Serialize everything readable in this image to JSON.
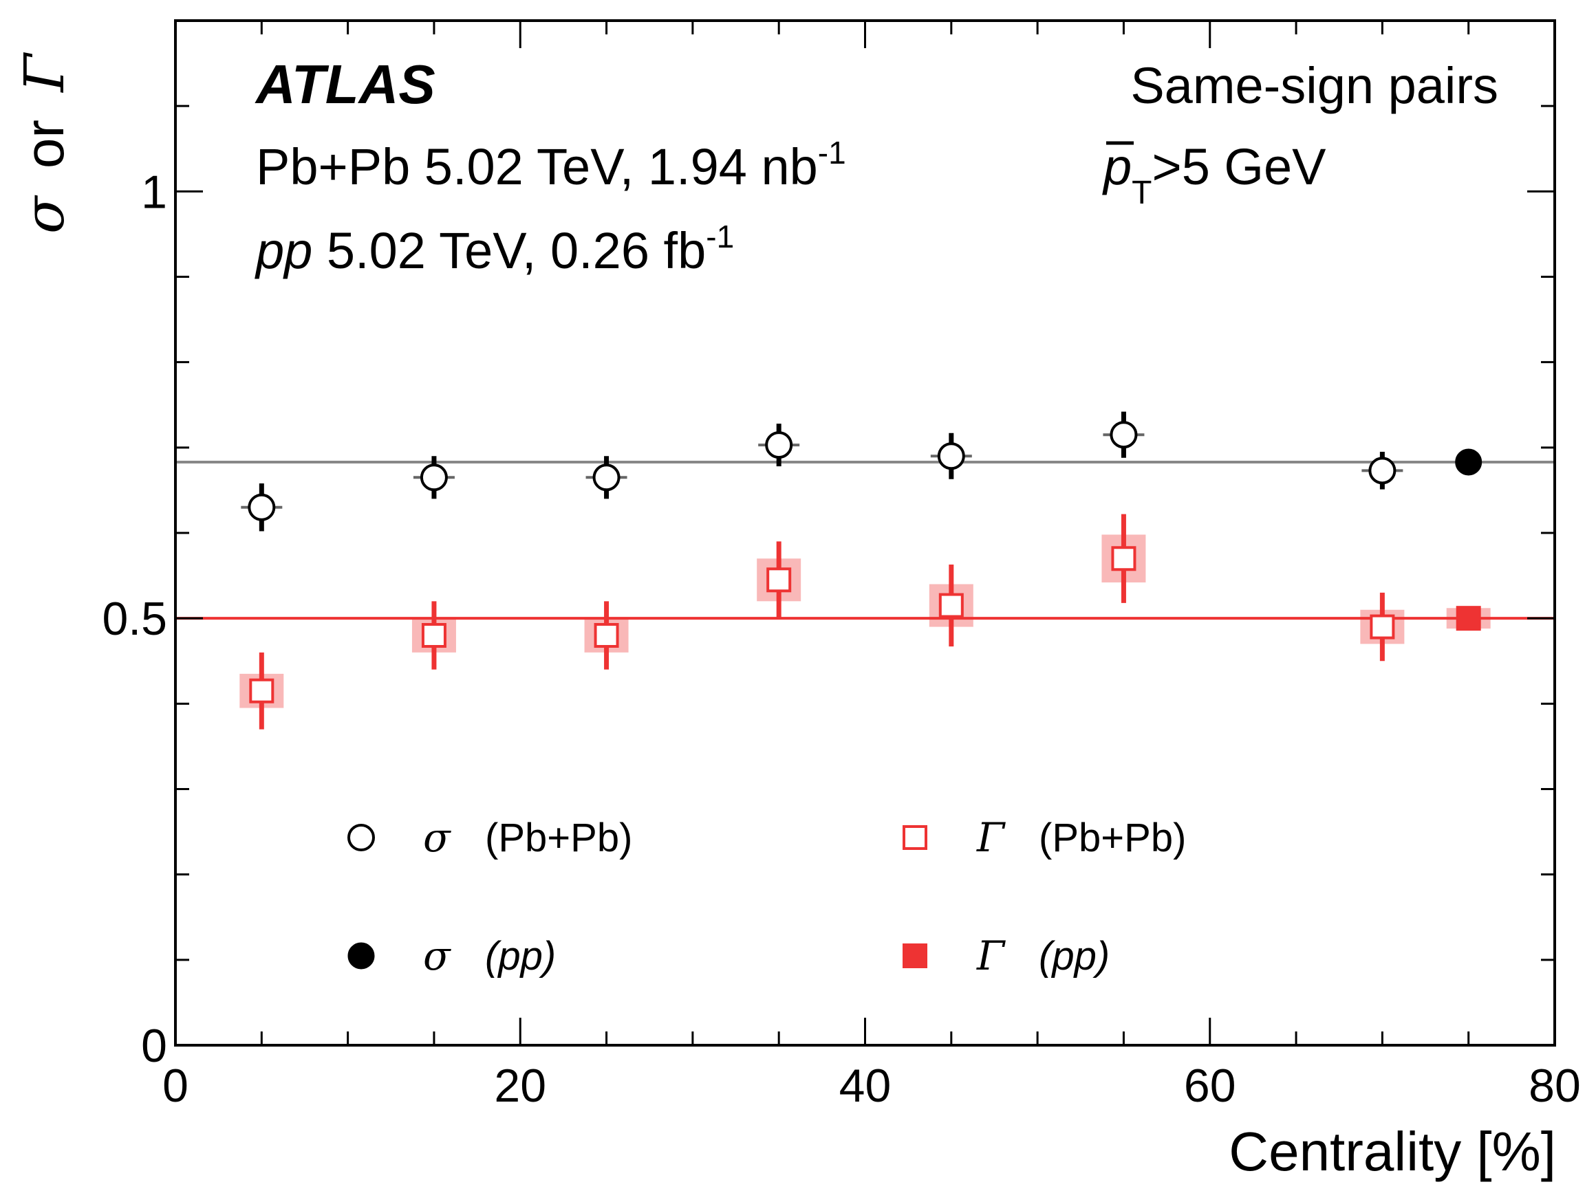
{
  "chart_data": {
    "type": "scatter",
    "title": "",
    "xlabel": "Centrality [%]",
    "ylabel": {
      "symbol1": "σ",
      "connector": "or",
      "symbol2": "Γ"
    },
    "xlim": [
      0,
      80
    ],
    "ylim": [
      0,
      1.2
    ],
    "x_major_ticks": [
      0,
      20,
      40,
      60,
      80
    ],
    "x_tick_labels": [
      "0",
      "20",
      "40",
      "60",
      "80"
    ],
    "y_major_ticks": [
      0,
      0.5,
      1
    ],
    "y_tick_labels": [
      "0",
      "0.5",
      "1"
    ],
    "x_minor_step": 5,
    "y_minor_step": 0.1,
    "annotations": {
      "experiment": "ATLAS",
      "pbpb_lumi": {
        "text": "Pb+Pb 5.02 TeV, 1.94 nb",
        "sup": "-1"
      },
      "pp_lumi": {
        "italic": "pp",
        "text": " 5.02 TeV, 0.26 fb",
        "sup": "-1"
      },
      "selection": "Same-sign pairs",
      "pt_cut": {
        "symbol": "p",
        "sub": "T",
        "text": ">5 GeV"
      }
    },
    "reference_lines": [
      {
        "name": "sigma-pp-level",
        "y": 0.683,
        "color": "#888888"
      },
      {
        "name": "gamma-pp-level",
        "y": 0.5,
        "color": "#ee3333"
      }
    ],
    "series": [
      {
        "name": "σ (Pb+Pb)",
        "marker": "open-circle",
        "color": "#000000",
        "x": [
          5,
          15,
          25,
          35,
          45,
          55,
          70
        ],
        "y": [
          0.63,
          0.665,
          0.665,
          0.703,
          0.69,
          0.715,
          0.673
        ],
        "err": [
          0.028,
          0.025,
          0.025,
          0.025,
          0.027,
          0.027,
          0.022
        ]
      },
      {
        "name": "σ (pp)",
        "marker": "filled-circle",
        "color": "#000000",
        "x": [
          75
        ],
        "y": [
          0.683
        ],
        "err": [
          0
        ]
      },
      {
        "name": "Γ (Pb+Pb)",
        "marker": "open-square",
        "color": "#ee3333",
        "x": [
          5,
          15,
          25,
          35,
          45,
          55,
          70
        ],
        "y": [
          0.415,
          0.48,
          0.48,
          0.545,
          0.515,
          0.57,
          0.49
        ],
        "err": [
          0.045,
          0.04,
          0.04,
          0.045,
          0.048,
          0.052,
          0.04
        ],
        "syst": [
          0.02,
          0.02,
          0.02,
          0.025,
          0.025,
          0.028,
          0.02
        ]
      },
      {
        "name": "Γ (pp)",
        "marker": "filled-square",
        "color": "#ee3333",
        "x": [
          75
        ],
        "y": [
          0.5
        ],
        "err": [
          0
        ],
        "syst": [
          0.012
        ]
      }
    ],
    "legend": {
      "placement": "lower-center",
      "entries": [
        {
          "symbol": "σ",
          "label": "(Pb+Pb)",
          "label_italic": false,
          "marker": "open-circle",
          "color": "#000000"
        },
        {
          "symbol": "Γ",
          "label": "(Pb+Pb)",
          "label_italic": false,
          "marker": "open-square",
          "color": "#ee3333"
        },
        {
          "symbol": "σ",
          "label": "(pp)",
          "label_italic": true,
          "marker": "filled-circle",
          "color": "#000000"
        },
        {
          "symbol": "Γ",
          "label": "(pp)",
          "label_italic": true,
          "marker": "filled-square",
          "color": "#ee3333"
        }
      ]
    }
  }
}
